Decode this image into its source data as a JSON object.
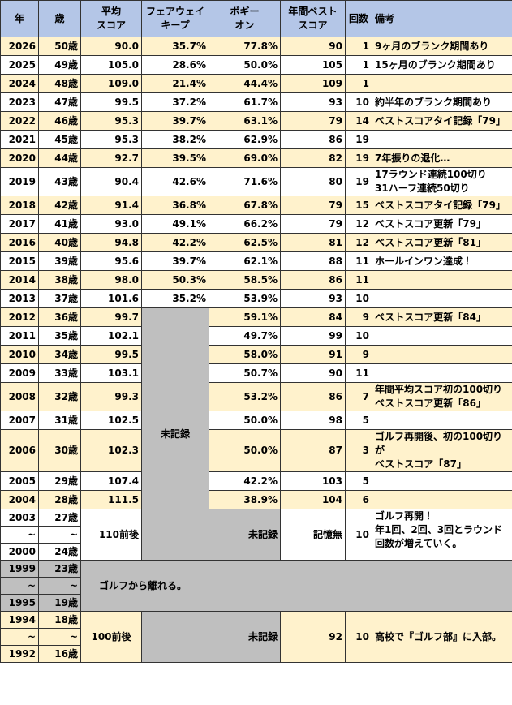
{
  "table": {
    "header": [
      [
        "年"
      ],
      [
        "歳"
      ],
      [
        "平均",
        "スコア"
      ],
      [
        "フェアウェイ",
        "キープ"
      ],
      [
        "ボギー",
        "オン"
      ],
      [
        "年間ベスト",
        "スコア"
      ],
      [
        "回数"
      ],
      [
        "備考"
      ]
    ],
    "rows": [
      {
        "year": "2026",
        "age": "50歳",
        "avg": "90.0",
        "fairway": "35.7%",
        "bogey_on": "77.8%",
        "best": "90",
        "rounds": "1",
        "note": "9ヶ月のブランク期間あり"
      },
      {
        "year": "2025",
        "age": "49歳",
        "avg": "105.0",
        "fairway": "28.6%",
        "bogey_on": "50.0%",
        "best": "105",
        "rounds": "1",
        "note": "15ヶ月のブランク期間あり"
      },
      {
        "year": "2024",
        "age": "48歳",
        "avg": "109.0",
        "fairway": "21.4%",
        "bogey_on": "44.4%",
        "best": "109",
        "rounds": "1"
      },
      {
        "year": "2023",
        "age": "47歳",
        "avg": "99.5",
        "fairway": "37.2%",
        "bogey_on": "61.7%",
        "best": "93",
        "rounds": "10",
        "note": "約半年のブランク期間あり"
      },
      {
        "year": "2022",
        "age": "46歳",
        "avg": "95.3",
        "fairway": "39.7%",
        "bogey_on": "63.1%",
        "best": "79",
        "rounds": "14",
        "note": "ベストスコアタイ記録「79」"
      },
      {
        "year": "2021",
        "age": "45歳",
        "avg": "95.3",
        "fairway": "38.2%",
        "bogey_on": "62.9%",
        "best": "86",
        "rounds": "19"
      },
      {
        "year": "2020",
        "age": "44歳",
        "avg": "92.7",
        "fairway": "39.5%",
        "bogey_on": "69.0%",
        "best": "82",
        "rounds": "19",
        "note": "7年振りの退化…"
      },
      {
        "year": "2019",
        "age": "43歳",
        "avg": "90.4",
        "fairway": "42.6%",
        "bogey_on": "71.6%",
        "best": "80",
        "rounds": "19",
        "note": [
          "17ラウンド連続100切り",
          "31ハーフ連続50切り"
        ]
      },
      {
        "year": "2018",
        "age": "42歳",
        "avg": "91.4",
        "fairway": "36.8%",
        "bogey_on": "67.8%",
        "best": "79",
        "rounds": "15",
        "note": "ベストスコアタイ記録「79」"
      },
      {
        "year": "2017",
        "age": "41歳",
        "avg": "93.0",
        "fairway": "49.1%",
        "bogey_on": "66.2%",
        "best": "79",
        "rounds": "12",
        "note": "ベストスコア更新「79」"
      },
      {
        "year": "2016",
        "age": "40歳",
        "avg": "94.8",
        "fairway": "42.2%",
        "bogey_on": "62.5%",
        "best": "81",
        "rounds": "12",
        "note": "ベストスコア更新「81」"
      },
      {
        "year": "2015",
        "age": "39歳",
        "avg": "95.6",
        "fairway": "39.7%",
        "bogey_on": "62.1%",
        "best": "88",
        "rounds": "11",
        "note": "ホールインワン達成！"
      },
      {
        "year": "2014",
        "age": "38歳",
        "avg": "98.0",
        "fairway": "50.3%",
        "bogey_on": "58.5%",
        "best": "86",
        "rounds": "11"
      },
      {
        "year": "2013",
        "age": "37歳",
        "avg": "101.6",
        "fairway": "35.2%",
        "bogey_on": "53.9%",
        "best": "93",
        "rounds": "10"
      },
      {
        "year": "2012",
        "age": "36歳",
        "avg": "99.7",
        "bogey_on": "59.1%",
        "best": "84",
        "rounds": "9",
        "note": "ベストスコア更新「84」"
      },
      {
        "year": "2011",
        "age": "35歳",
        "avg": "102.1",
        "bogey_on": "49.7%",
        "best": "99",
        "rounds": "10"
      },
      {
        "year": "2010",
        "age": "34歳",
        "avg": "99.5",
        "bogey_on": "58.0%",
        "best": "91",
        "rounds": "9"
      },
      {
        "year": "2009",
        "age": "33歳",
        "avg": "103.1",
        "bogey_on": "50.7%",
        "best": "90",
        "rounds": "11"
      },
      {
        "year": "2008",
        "age": "32歳",
        "avg": "99.3",
        "bogey_on": "53.2%",
        "best": "86",
        "rounds": "7",
        "note": [
          "年間平均スコア初の100切り",
          "ベストスコア更新「86」"
        ]
      },
      {
        "year": "2007",
        "age": "31歳",
        "avg": "102.5",
        "bogey_on": "50.0%",
        "best": "98",
        "rounds": "5"
      },
      {
        "year": "2006",
        "age": "30歳",
        "avg": "102.3",
        "bogey_on": "50.0%",
        "best": "87",
        "rounds": "3",
        "note": [
          "ゴルフ再開後、初の100切りが",
          "ベストスコア「87」"
        ]
      },
      {
        "year": "2005",
        "age": "29歳",
        "avg": "107.4",
        "bogey_on": "42.2%",
        "best": "103",
        "rounds": "5"
      },
      {
        "year": "2004",
        "age": "28歳",
        "avg": "111.5",
        "bogey_on": "38.9%",
        "best": "104",
        "rounds": "6"
      }
    ],
    "fairway_unrecorded": "未記録",
    "block_2003": {
      "years": [
        "2003",
        "~",
        "2000"
      ],
      "ages": [
        "27歳",
        "~",
        "24歳"
      ],
      "avg": "110前後",
      "bogey_on": "未記録",
      "best": "記憶無",
      "rounds": "10",
      "note": [
        "ゴルフ再開！",
        "年1回、2回、3回とラウンド回数が増えていく。"
      ]
    },
    "block_1999": {
      "years": [
        "1999",
        "~",
        "1995"
      ],
      "ages": [
        "23歳",
        "~",
        "19歳"
      ],
      "note": "ゴルフから離れる。"
    },
    "block_1994": {
      "years": [
        "1994",
        "~",
        "1992"
      ],
      "ages": [
        "18歳",
        "~",
        "16歳"
      ],
      "avg": "100前後",
      "bogey_on": "未記録",
      "best": "92",
      "rounds": "10",
      "note": "高校で『ゴルフ部』に入部。"
    }
  }
}
